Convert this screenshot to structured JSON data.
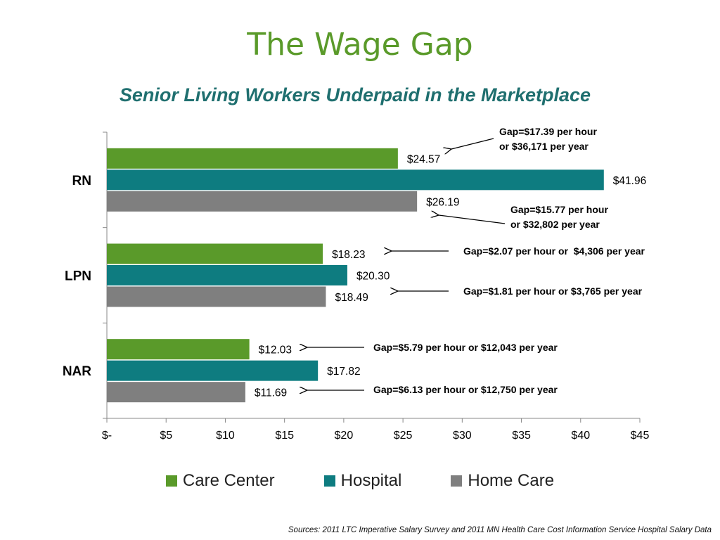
{
  "page": {
    "title": "The Wage Gap",
    "subtitle": "Senior Living Workers Underpaid in the Marketplace",
    "source": "Sources: 2011 LTC Imperative Salary Survey and 2011 MN Health Care Cost Information Service Hospital Salary Data"
  },
  "chart_data": {
    "type": "bar",
    "orientation": "horizontal",
    "categories": [
      "RN",
      "LPN",
      "NAR"
    ],
    "series": [
      {
        "name": "Care Center",
        "color": "#5a9a2a",
        "values": [
          24.57,
          18.23,
          12.03
        ],
        "labels": [
          "$24.57",
          "$18.23",
          "$12.03"
        ]
      },
      {
        "name": "Hospital",
        "color": "#0e7c80",
        "values": [
          41.96,
          20.3,
          17.82
        ],
        "labels": [
          "$41.96",
          "$20.30",
          "$17.82"
        ]
      },
      {
        "name": "Home Care",
        "color": "#7f7f7f",
        "values": [
          26.19,
          18.49,
          11.69
        ],
        "labels": [
          "$26.19",
          "$18.49",
          "$11.69"
        ]
      }
    ],
    "xlim": [
      0,
      45
    ],
    "xticks": [
      0,
      5,
      10,
      15,
      20,
      25,
      30,
      35,
      40,
      45
    ],
    "xtick_labels": [
      "$-",
      "$5",
      "$10",
      "$15",
      "$20",
      "$25",
      "$30",
      "$35",
      "$40",
      "$45"
    ],
    "grid": false,
    "legend": "bottom",
    "annotations": [
      {
        "category": "RN",
        "series": "Care Center",
        "lines": [
          "Gap=$17.39 per hour",
          "or $36,171 per year"
        ]
      },
      {
        "category": "RN",
        "series": "Home Care",
        "lines": [
          "Gap=$15.77 per hour",
          "or $32,802 per year"
        ]
      },
      {
        "category": "LPN",
        "series": "Care Center",
        "lines": [
          "Gap=$2.07 per hour or  $4,306 per year"
        ]
      },
      {
        "category": "LPN",
        "series": "Home Care",
        "lines": [
          "Gap=$1.81 per hour or $3,765 per year"
        ]
      },
      {
        "category": "NAR",
        "series": "Care Center",
        "lines": [
          "Gap=$5.79 per hour or $12,043 per year"
        ]
      },
      {
        "category": "NAR",
        "series": "Home Care",
        "lines": [
          "Gap=$6.13 per hour or $12,750 per year"
        ]
      }
    ]
  }
}
